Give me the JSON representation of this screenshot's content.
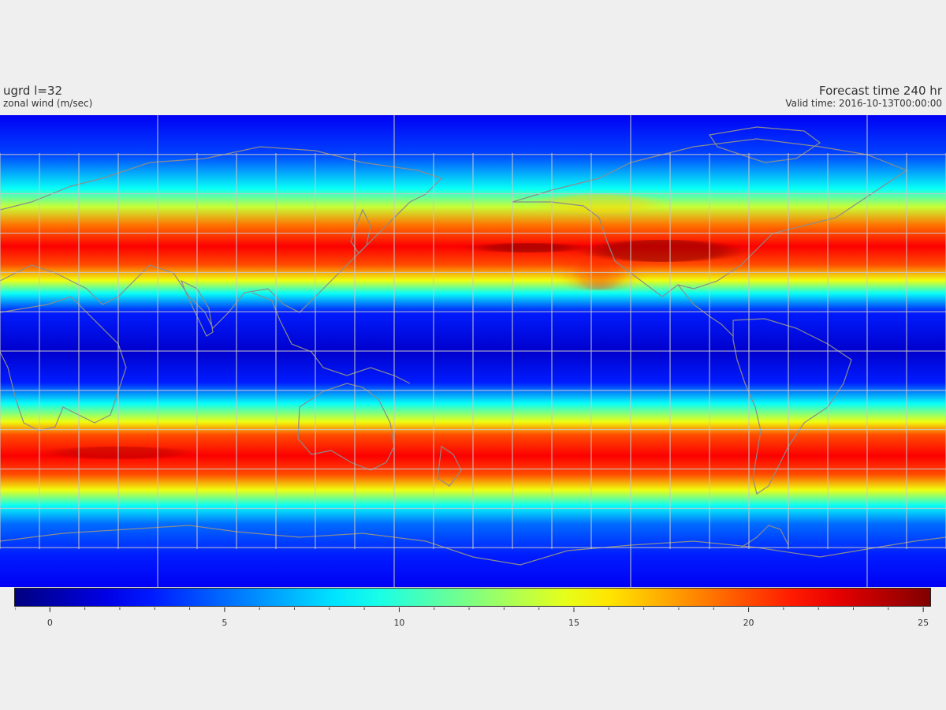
{
  "header": {
    "variable_title": "ugrd l=32",
    "variable_subtitle": "zonal wind (m/sec)",
    "forecast_title": "Forecast time 240 hr",
    "valid_time": "Valid time: 2016-10-13T00:00:00"
  },
  "colorbar": {
    "min": -1,
    "max": 25.2,
    "tick_labels": [
      "0",
      "5",
      "10",
      "15",
      "20",
      "25"
    ],
    "tick_values": [
      0,
      5,
      10,
      15,
      20,
      25
    ],
    "minor_step": 1,
    "colormap": "jet",
    "colors": [
      "#00008f",
      "#0000ff",
      "#00ffff",
      "#ffff00",
      "#ff0000",
      "#800000"
    ]
  },
  "map": {
    "projection": "equirectangular",
    "lon_range": [
      30,
      390
    ],
    "lat_range": [
      -90,
      90
    ],
    "grid_lon_step": 15,
    "grid_lat_step": 15,
    "grid_color": "#c8c8c8",
    "coastline_color": "#8c8c8c",
    "wind_bands": [
      {
        "lat": 90,
        "speed": 2
      },
      {
        "lat": 75,
        "speed": 4
      },
      {
        "lat": 62,
        "speed": 9
      },
      {
        "lat": 55,
        "speed": 14
      },
      {
        "lat": 48,
        "speed": 19
      },
      {
        "lat": 40,
        "speed": 22
      },
      {
        "lat": 33,
        "speed": 20
      },
      {
        "lat": 27,
        "speed": 15
      },
      {
        "lat": 22,
        "speed": 9
      },
      {
        "lat": 15,
        "speed": 3
      },
      {
        "lat": 0,
        "speed": 1
      },
      {
        "lat": -12,
        "speed": 3
      },
      {
        "lat": -20,
        "speed": 9
      },
      {
        "lat": -27,
        "speed": 15
      },
      {
        "lat": -32,
        "speed": 20
      },
      {
        "lat": -40,
        "speed": 22
      },
      {
        "lat": -47,
        "speed": 20
      },
      {
        "lat": -53,
        "speed": 15
      },
      {
        "lat": -59,
        "speed": 9
      },
      {
        "lat": -66,
        "speed": 5
      },
      {
        "lat": -78,
        "speed": 3
      },
      {
        "lat": -90,
        "speed": 2
      }
    ]
  }
}
